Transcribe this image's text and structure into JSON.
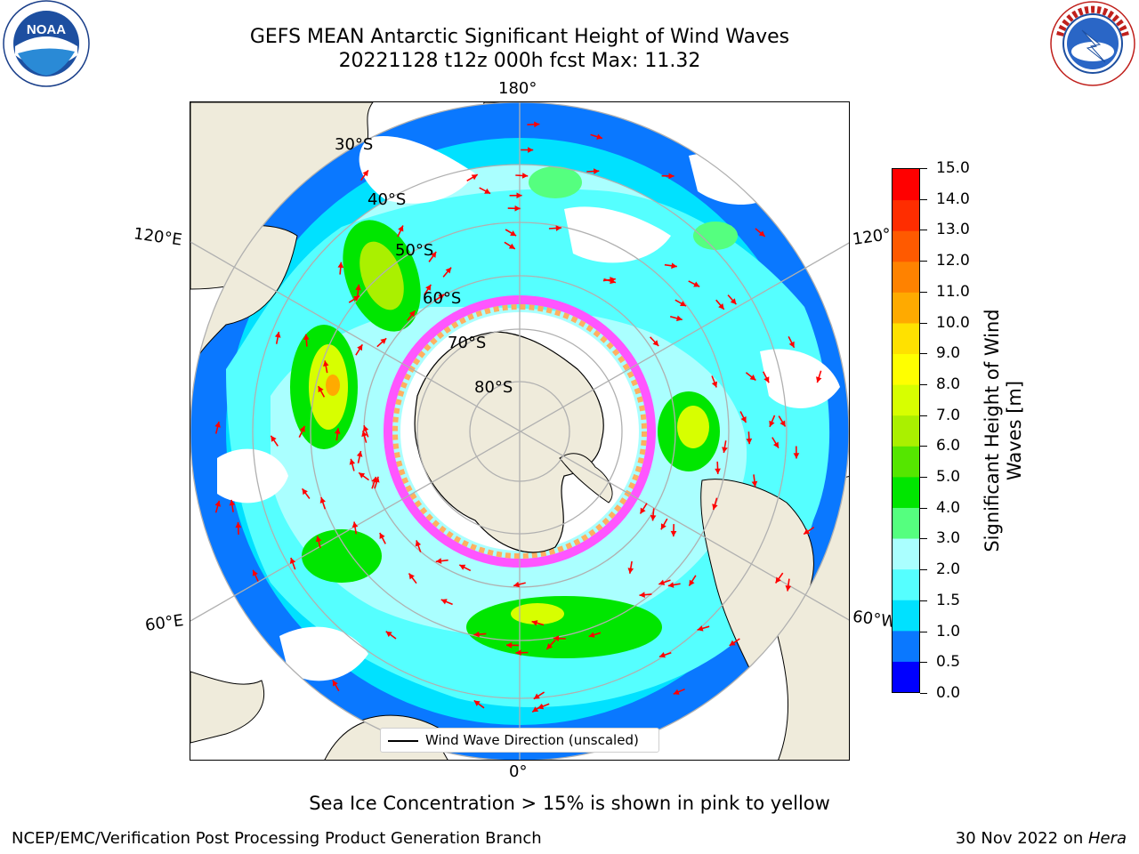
{
  "title": {
    "line1": "GEFS MEAN Antarctic Significant Height of Wind Waves",
    "line2": "20221128 t12z 000h fcst   Max: 11.32"
  },
  "logos": {
    "noaa": "NOAA",
    "noaa_ring": "NATIONAL OCEANIC AND ATMOSPHERIC ADMINISTRATION · U.S. DEPARTMENT OF COMMERCE",
    "nws_ring": "NATIONAL WEATHER SERVICE"
  },
  "map": {
    "longitude_labels": {
      "top": "180°",
      "bottom": "0°",
      "left_upper": "120°E",
      "left_lower": "60°E",
      "right_upper": "120°",
      "right_lower": "60°W"
    },
    "latitude_labels": [
      "30°S",
      "40°S",
      "50°S",
      "60°S",
      "70°S",
      "80°S"
    ],
    "legend_text": "Wind Wave Direction (unscaled)",
    "colors": {
      "land": "#efebdb",
      "coast": "#000000",
      "grid": "#b0b0b0",
      "arrow": "#ff0000"
    }
  },
  "colorbar": {
    "label": "Significant Height of Wind Waves [m]",
    "ticks": [
      "0.0",
      "0.5",
      "1.0",
      "1.5",
      "2.0",
      "3.0",
      "4.0",
      "5.0",
      "6.0",
      "7.0",
      "8.0",
      "9.0",
      "10.0",
      "11.0",
      "12.0",
      "13.0",
      "14.0",
      "15.0"
    ],
    "colors": [
      "#0000ff",
      "#0a78ff",
      "#00e1ff",
      "#55ffff",
      "#aaffff",
      "#55ff7f",
      "#00e600",
      "#55e600",
      "#aaf000",
      "#d7ff00",
      "#ffff00",
      "#ffe100",
      "#ffaa00",
      "#ff8200",
      "#ff5a00",
      "#ff2d00",
      "#ff0000"
    ]
  },
  "footer": {
    "note": "Sea Ice Concentration > 15% is shown in pink to yellow",
    "branch": "NCEP/EMC/Verification Post Processing Product Generation Branch",
    "date": "30 Nov 2022 on ",
    "machine": "Hera"
  }
}
